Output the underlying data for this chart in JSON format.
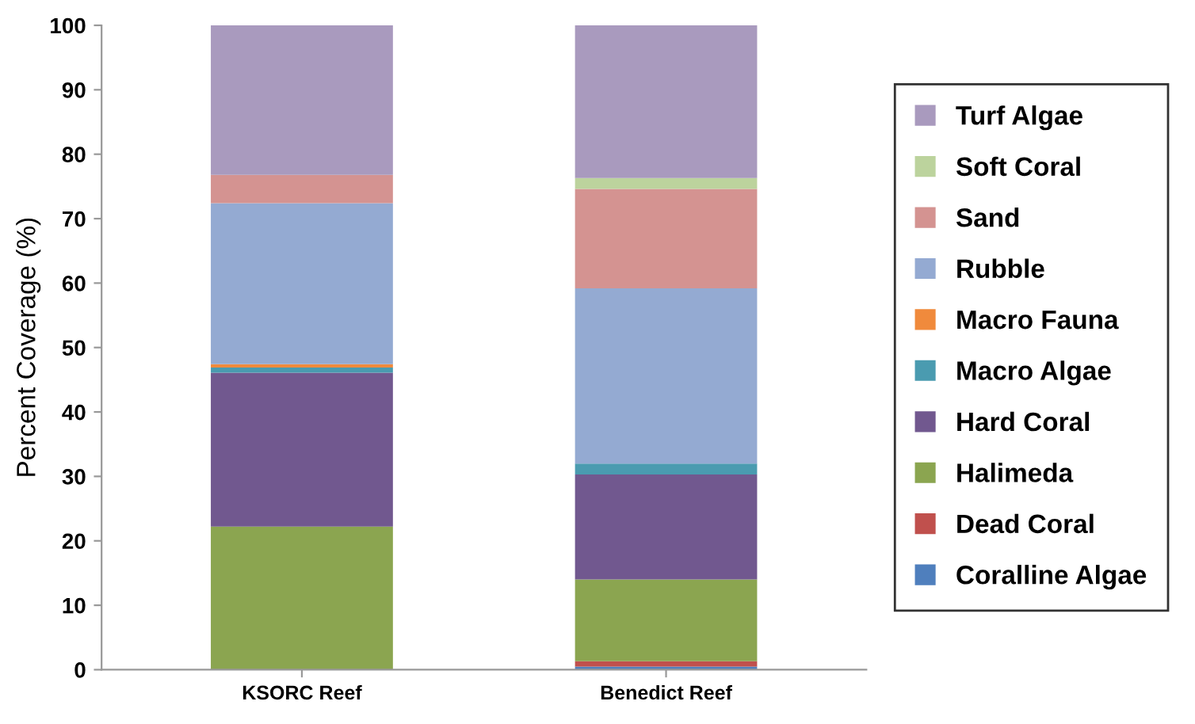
{
  "chart_data": {
    "type": "bar",
    "stacked": true,
    "ylabel": "Percent Coverage (%)",
    "categories": [
      "KSORC Reef",
      "Benedict Reef"
    ],
    "series": [
      {
        "name": "Coralline Algae",
        "color": "#4f7fbd",
        "values": [
          0,
          0.5
        ]
      },
      {
        "name": "Dead Coral",
        "color": "#c0504d",
        "values": [
          0,
          0.8
        ]
      },
      {
        "name": "Halimeda",
        "color": "#8ba550",
        "values": [
          22.2,
          12.7
        ]
      },
      {
        "name": "Hard Coral",
        "color": "#71588f",
        "values": [
          23.9,
          16.3
        ]
      },
      {
        "name": "Macro Algae",
        "color": "#4a9bb0",
        "values": [
          0.8,
          1.7
        ]
      },
      {
        "name": "Macro Fauna",
        "color": "#f08a3c",
        "values": [
          0.5,
          0
        ]
      },
      {
        "name": "Rubble",
        "color": "#94aad2",
        "values": [
          25.0,
          27.2
        ]
      },
      {
        "name": "Sand",
        "color": "#d49391",
        "values": [
          4.4,
          15.4
        ]
      },
      {
        "name": "Soft Coral",
        "color": "#bcd39d",
        "values": [
          0,
          1.7
        ]
      },
      {
        "name": "Turf Algae",
        "color": "#a99abe",
        "values": [
          23.2,
          23.7
        ]
      }
    ],
    "ylim": [
      0,
      100
    ],
    "yticks": [
      0,
      10,
      20,
      30,
      40,
      50,
      60,
      70,
      80,
      90,
      100
    ],
    "grid": false,
    "legend": "right"
  }
}
